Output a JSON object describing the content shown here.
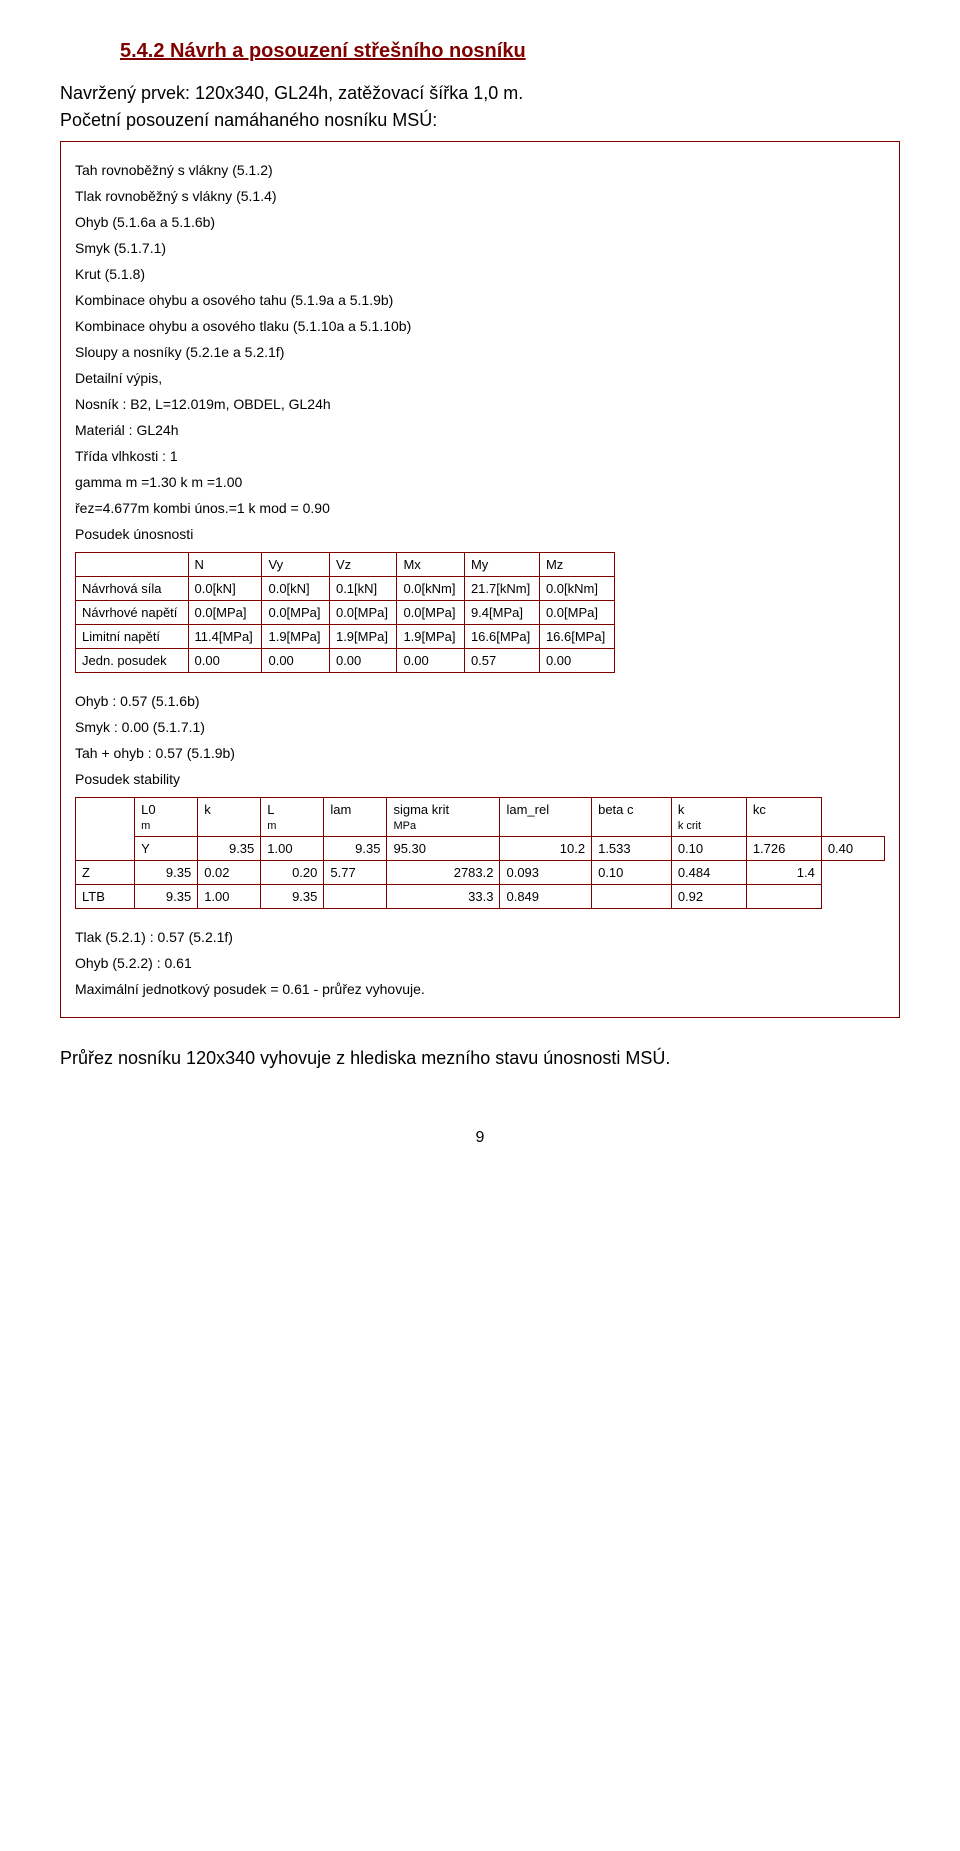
{
  "heading": "5.4.2   Návrh a posouzení střešního nosníku",
  "intro1": "Navržený prvek: 120x340, GL24h, zatěžovací šířka 1,0 m.",
  "intro2": "Početní posouzení namáhaného nosníku MSÚ:",
  "framed_lines": [
    "Tah rovnoběžný s vlákny (5.1.2)",
    "Tlak rovnoběžný s vlákny (5.1.4)",
    "Ohyb (5.1.6a a 5.1.6b)",
    "Smyk (5.1.7.1)",
    "Krut (5.1.8)",
    "Kombinace ohybu a osového tahu (5.1.9a a 5.1.9b)",
    "Kombinace ohybu a osového tlaku (5.1.10a a 5.1.10b)",
    "Sloupy a nosníky (5.2.1e a 5.2.1f)",
    "Detailní výpis,",
    "Nosník : B2, L=12.019m, OBDEL, GL24h",
    "Materiál : GL24h",
    "Třída vlhkosti : 1",
    "gamma m =1.30 k m =1.00",
    "řez=4.677m kombi únos.=1 k mod = 0.90",
    "Posudek únosnosti"
  ],
  "table1": {
    "headers": [
      "",
      "N",
      "Vy",
      "Vz",
      "Mx",
      "My",
      "Mz"
    ],
    "rows": [
      [
        "Návrhová síla",
        "0.0[kN]",
        "0.0[kN]",
        "0.1[kN]",
        "0.0[kNm]",
        "21.7[kNm]",
        "0.0[kNm]"
      ],
      [
        "Návrhové napětí",
        "0.0[MPa]",
        "0.0[MPa]",
        "0.0[MPa]",
        "0.0[MPa]",
        "9.4[MPa]",
        "0.0[MPa]"
      ],
      [
        "Limitní napětí",
        "11.4[MPa]",
        "1.9[MPa]",
        "1.9[MPa]",
        "1.9[MPa]",
        "16.6[MPa]",
        "16.6[MPa]"
      ],
      [
        "Jedn. posudek",
        "0.00",
        "0.00",
        "0.00",
        "0.00",
        "0.57",
        "0.00"
      ]
    ]
  },
  "mid_lines": [
    "Ohyb : 0.57 (5.1.6b)",
    "Smyk : 0.00 (5.1.7.1)",
    "Tah + ohyb : 0.57 (5.1.9b)",
    "Posudek stability"
  ],
  "table2": {
    "header_row1": [
      "",
      "L0",
      "k",
      "L",
      "lam",
      "sigma krit",
      "lam_rel",
      "beta c",
      "k",
      "kc"
    ],
    "header_row2": [
      "",
      "m",
      "",
      "m",
      "",
      "MPa",
      "",
      "",
      "k crit",
      ""
    ],
    "rows": [
      [
        "Y",
        "9.35",
        "1.00",
        "9.35",
        "95.30",
        "10.2",
        "1.533",
        "0.10",
        "1.726",
        "0.40"
      ],
      [
        "Z",
        "9.35",
        "0.02",
        "0.20",
        "5.77",
        "2783.2",
        "0.093",
        "0.10",
        "0.484",
        "1.4"
      ],
      [
        "LTB",
        "9.35",
        "1.00",
        "9.35",
        "",
        "33.3",
        "0.849",
        "",
        "0.92",
        ""
      ]
    ]
  },
  "tail_lines": [
    "Tlak (5.2.1) : 0.57 (5.2.1f)",
    "Ohyb (5.2.2) : 0.61",
    "Maximální jednotkový posudek = 0.61 - průřez vyhovuje."
  ],
  "final": "Průřez nosníku 120x340 vyhovuje z hlediska mezního stavu únosnosti MSÚ.",
  "page": "9"
}
